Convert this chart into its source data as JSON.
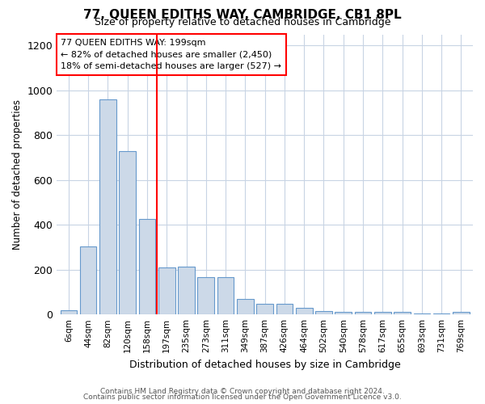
{
  "title": "77, QUEEN EDITHS WAY, CAMBRIDGE, CB1 8PL",
  "subtitle": "Size of property relative to detached houses in Cambridge",
  "xlabel": "Distribution of detached houses by size in Cambridge",
  "ylabel": "Number of detached properties",
  "bar_labels": [
    "6sqm",
    "44sqm",
    "82sqm",
    "120sqm",
    "158sqm",
    "197sqm",
    "235sqm",
    "273sqm",
    "311sqm",
    "349sqm",
    "387sqm",
    "426sqm",
    "464sqm",
    "502sqm",
    "540sqm",
    "578sqm",
    "617sqm",
    "655sqm",
    "693sqm",
    "731sqm",
    "769sqm"
  ],
  "bar_values": [
    20,
    305,
    960,
    730,
    425,
    210,
    215,
    165,
    165,
    70,
    48,
    48,
    28,
    15,
    10,
    10,
    10,
    10,
    5,
    5,
    10
  ],
  "bar_color": "#ccd9e8",
  "bar_edge_color": "#6699cc",
  "redline_index": 5,
  "annotation_line1": "77 QUEEN EDITHS WAY: 199sqm",
  "annotation_line2": "← 82% of detached houses are smaller (2,450)",
  "annotation_line3": "18% of semi-detached houses are larger (527) →",
  "ylim": [
    0,
    1250
  ],
  "yticks": [
    0,
    200,
    400,
    600,
    800,
    1000,
    1200
  ],
  "footer1": "Contains HM Land Registry data © Crown copyright and database right 2024.",
  "footer2": "Contains public sector information licensed under the Open Government Licence v3.0.",
  "bg_color": "#ffffff",
  "grid_color": "#c8d4e4"
}
